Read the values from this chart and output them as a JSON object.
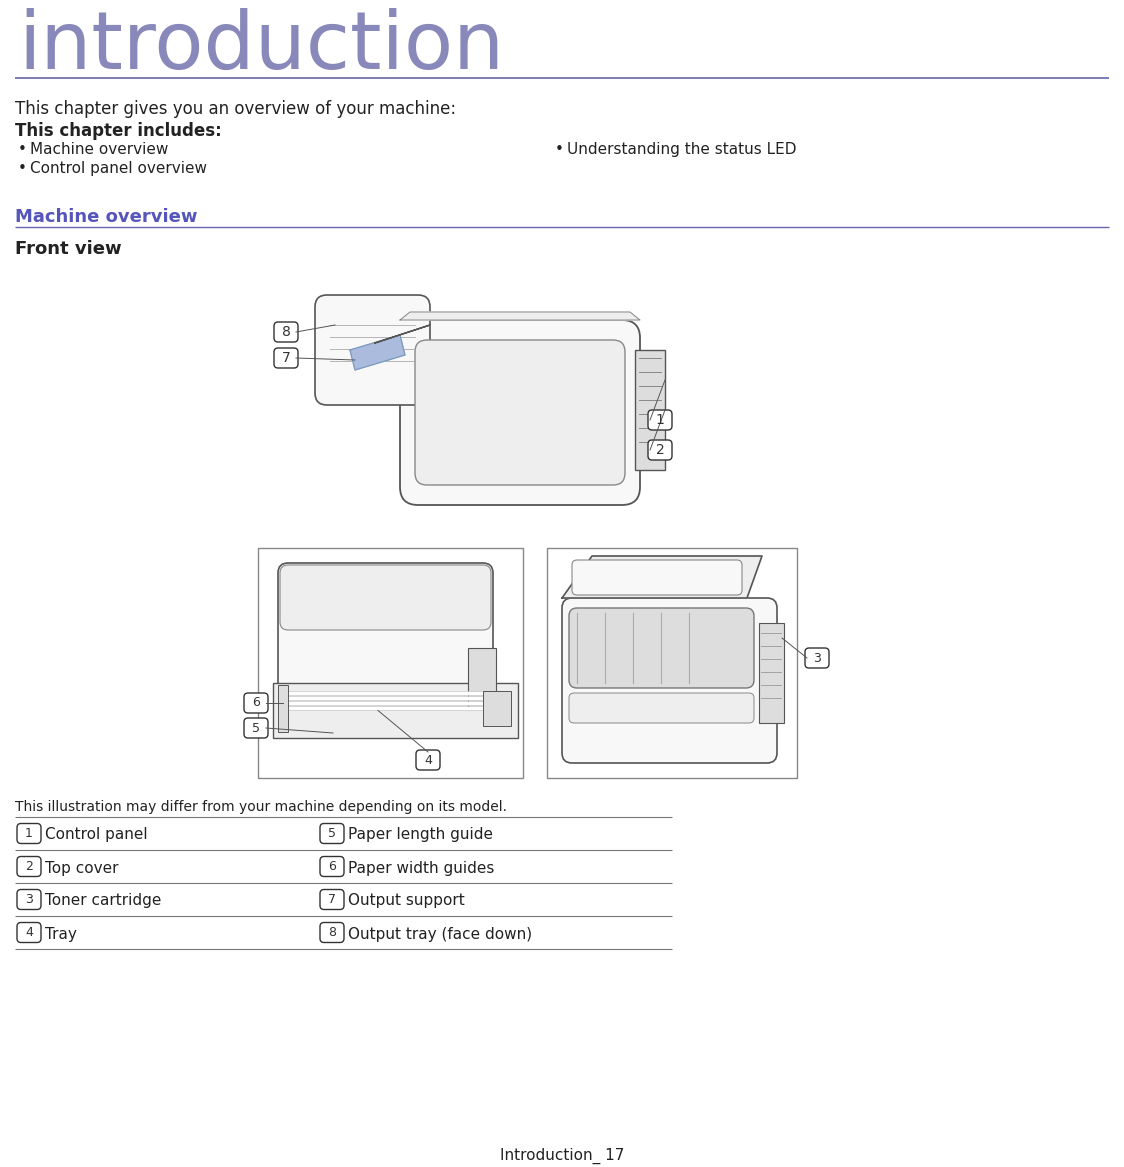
{
  "title": "introduction",
  "title_color": "#8888bb",
  "title_fontsize": 58,
  "separator_color": "#6666aa",
  "body_text_color": "#222222",
  "intro_text": "This chapter gives you an overview of your machine:",
  "intro_fontsize": 12,
  "chapter_includes_label": "This chapter includes:",
  "bullet_items_left": [
    "Machine overview",
    "Control panel overview"
  ],
  "bullet_items_right": [
    "Understanding the status LED"
  ],
  "section_heading": "Machine overview",
  "section_heading_color": "#5555bb",
  "section_heading_fontsize": 13,
  "subsection_heading": "Front view",
  "subsection_fontsize": 13,
  "caption_text": "This illustration may differ from your machine depending on its model.",
  "caption_fontsize": 10,
  "table_items_left": [
    {
      "num": "1",
      "label": "Control panel"
    },
    {
      "num": "2",
      "label": "Top cover"
    },
    {
      "num": "3",
      "label": "Toner cartridge"
    },
    {
      "num": "4",
      "label": "Tray"
    }
  ],
  "table_items_right": [
    {
      "num": "5",
      "label": "Paper length guide"
    },
    {
      "num": "6",
      "label": "Paper width guides"
    },
    {
      "num": "7",
      "label": "Output support"
    },
    {
      "num": "8",
      "label": "Output tray (face down)"
    }
  ],
  "footer_text": "Introduction_ 17",
  "footer_fontsize": 11,
  "bg_color": "#ffffff",
  "label_fontsize": 11,
  "bullet_fontsize": 11,
  "printer_line_color": "#555555",
  "printer_fill_light": "#f8f8f8",
  "printer_fill_mid": "#eeeeee",
  "printer_fill_dark": "#dddddd",
  "badge_color": "#333333"
}
